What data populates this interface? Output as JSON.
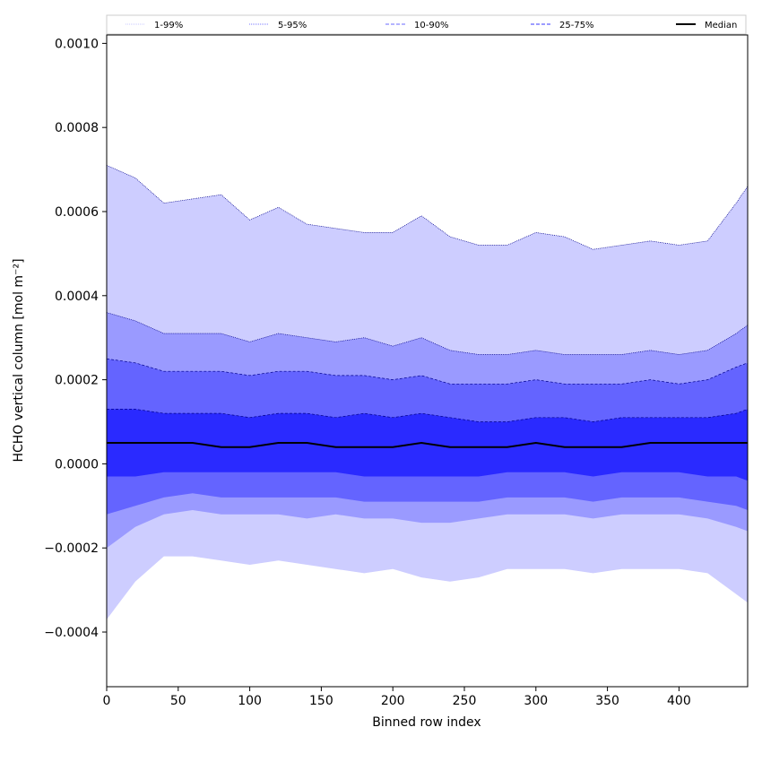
{
  "chart_data": {
    "type": "area",
    "xlabel": "Binned row index",
    "ylabel": "HCHO vertical column [mol m⁻²]",
    "xlim": [
      0,
      448
    ],
    "ylim": [
      -0.00053,
      0.00102
    ],
    "x_ticks": [
      {
        "value": 0,
        "label": "0"
      },
      {
        "value": 50,
        "label": "50"
      },
      {
        "value": 100,
        "label": "100"
      },
      {
        "value": 150,
        "label": "150"
      },
      {
        "value": 200,
        "label": "200"
      },
      {
        "value": 250,
        "label": "250"
      },
      {
        "value": 300,
        "label": "300"
      },
      {
        "value": 350,
        "label": "350"
      },
      {
        "value": 400,
        "label": "400"
      }
    ],
    "y_ticks": [
      {
        "value": -0.0004,
        "label": "−0.0004"
      },
      {
        "value": -0.0002,
        "label": "−0.0002"
      },
      {
        "value": 0.0,
        "label": "0.0000"
      },
      {
        "value": 0.0002,
        "label": "0.0002"
      },
      {
        "value": 0.0004,
        "label": "0.0004"
      },
      {
        "value": 0.0006,
        "label": "0.0006"
      },
      {
        "value": 0.0008,
        "label": "0.0008"
      },
      {
        "value": 0.001,
        "label": "0.0010"
      }
    ],
    "legend": {
      "placement": "top",
      "entries": [
        {
          "label": "1-99%",
          "color": "#c8c8ff",
          "style": "dotted"
        },
        {
          "label": "5-95%",
          "color": "#7a7aff",
          "style": "dotted"
        },
        {
          "label": "10-90%",
          "color": "#6a6aff",
          "style": "dashed"
        },
        {
          "label": "25-75%",
          "color": "#3a3aff",
          "style": "dashed"
        },
        {
          "label": "Median",
          "color": "#000000",
          "style": "solid"
        }
      ]
    },
    "x": [
      0,
      20,
      40,
      60,
      80,
      100,
      120,
      140,
      160,
      180,
      200,
      220,
      240,
      260,
      280,
      300,
      320,
      340,
      360,
      380,
      400,
      420,
      440,
      448
    ],
    "bands": [
      {
        "name": "1-99%",
        "color": "#cdcdff",
        "upper": [
          0.00071,
          0.00068,
          0.00062,
          0.00063,
          0.00064,
          0.00058,
          0.00061,
          0.00057,
          0.00056,
          0.00055,
          0.00055,
          0.00059,
          0.00054,
          0.00052,
          0.00052,
          0.00055,
          0.00054,
          0.00051,
          0.00052,
          0.00053,
          0.00052,
          0.00053,
          0.00062,
          0.00066
        ],
        "lower": [
          -0.00037,
          -0.00028,
          -0.00022,
          -0.00022,
          -0.00023,
          -0.00024,
          -0.00023,
          -0.00024,
          -0.00025,
          -0.00026,
          -0.00025,
          -0.00027,
          -0.00028,
          -0.00027,
          -0.00025,
          -0.00025,
          -0.00025,
          -0.00026,
          -0.00025,
          -0.00025,
          -0.00025,
          -0.00026,
          -0.00031,
          -0.00033
        ]
      },
      {
        "name": "5-95%",
        "color": "#9a9aff",
        "upper": [
          0.00036,
          0.00034,
          0.00031,
          0.00031,
          0.00031,
          0.00029,
          0.00031,
          0.0003,
          0.00029,
          0.0003,
          0.00028,
          0.0003,
          0.00027,
          0.00026,
          0.00026,
          0.00027,
          0.00026,
          0.00026,
          0.00026,
          0.00027,
          0.00026,
          0.00027,
          0.00031,
          0.00033
        ],
        "lower": [
          -0.0002,
          -0.00015,
          -0.00012,
          -0.00011,
          -0.00012,
          -0.00012,
          -0.00012,
          -0.00013,
          -0.00012,
          -0.00013,
          -0.00013,
          -0.00014,
          -0.00014,
          -0.00013,
          -0.00012,
          -0.00012,
          -0.00012,
          -0.00013,
          -0.00012,
          -0.00012,
          -0.00012,
          -0.00013,
          -0.00015,
          -0.00016
        ]
      },
      {
        "name": "10-90%",
        "color": "#6464ff",
        "upper": [
          0.00025,
          0.00024,
          0.00022,
          0.00022,
          0.00022,
          0.00021,
          0.00022,
          0.00022,
          0.00021,
          0.00021,
          0.0002,
          0.00021,
          0.00019,
          0.00019,
          0.00019,
          0.0002,
          0.00019,
          0.00019,
          0.00019,
          0.0002,
          0.00019,
          0.0002,
          0.00023,
          0.00024
        ],
        "lower": [
          -0.00012,
          -0.0001,
          -8e-05,
          -7e-05,
          -8e-05,
          -8e-05,
          -8e-05,
          -8e-05,
          -8e-05,
          -9e-05,
          -9e-05,
          -9e-05,
          -9e-05,
          -9e-05,
          -8e-05,
          -8e-05,
          -8e-05,
          -9e-05,
          -8e-05,
          -8e-05,
          -8e-05,
          -9e-05,
          -0.0001,
          -0.00011
        ]
      },
      {
        "name": "25-75%",
        "color": "#2a2aff",
        "upper": [
          0.00013,
          0.00013,
          0.00012,
          0.00012,
          0.00012,
          0.00011,
          0.00012,
          0.00012,
          0.00011,
          0.00012,
          0.00011,
          0.00012,
          0.00011,
          0.0001,
          0.0001,
          0.00011,
          0.00011,
          0.0001,
          0.00011,
          0.00011,
          0.00011,
          0.00011,
          0.00012,
          0.00013
        ],
        "lower": [
          -3e-05,
          -3e-05,
          -2e-05,
          -2e-05,
          -2e-05,
          -2e-05,
          -2e-05,
          -2e-05,
          -2e-05,
          -3e-05,
          -3e-05,
          -3e-05,
          -3e-05,
          -3e-05,
          -2e-05,
          -2e-05,
          -2e-05,
          -3e-05,
          -2e-05,
          -2e-05,
          -2e-05,
          -3e-05,
          -3e-05,
          -4e-05
        ]
      }
    ],
    "median": {
      "name": "Median",
      "color": "#000000",
      "values": [
        5e-05,
        5e-05,
        5e-05,
        5e-05,
        4e-05,
        4e-05,
        5e-05,
        5e-05,
        4e-05,
        4e-05,
        4e-05,
        5e-05,
        4e-05,
        4e-05,
        4e-05,
        5e-05,
        4e-05,
        4e-05,
        4e-05,
        5e-05,
        5e-05,
        5e-05,
        5e-05,
        5e-05
      ]
    }
  }
}
